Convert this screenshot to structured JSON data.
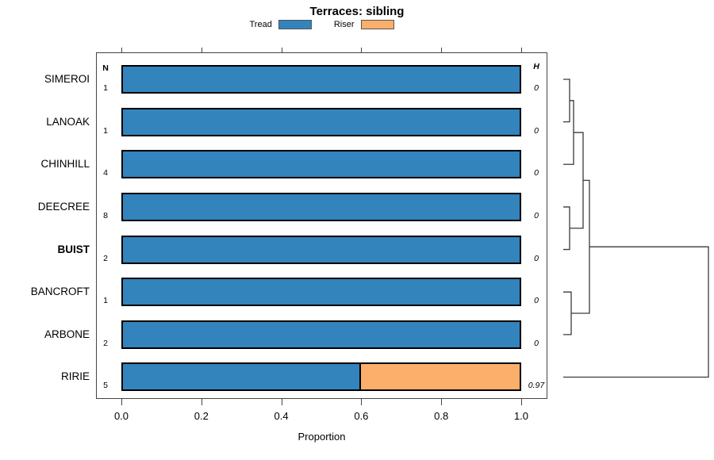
{
  "title": "Terraces: sibling",
  "legend": {
    "items": [
      {
        "label": "Tread",
        "color": "#3383bd",
        "icon": "tread-swatch"
      },
      {
        "label": "Riser",
        "color": "#fcae6b",
        "icon": "riser-swatch"
      }
    ]
  },
  "columns": {
    "left_header": "N",
    "right_header": "H"
  },
  "chart_data": {
    "type": "bar",
    "orientation": "horizontal-stacked",
    "title": "Terraces: sibling",
    "xlabel": "Proportion",
    "xlim": [
      0.0,
      1.0
    ],
    "x_ticks": [
      "0.0",
      "0.2",
      "0.4",
      "0.6",
      "0.8",
      "1.0"
    ],
    "grid": false,
    "legend_position": "top",
    "series_names": [
      "Tread",
      "Riser"
    ],
    "categories": [
      "SIMEROI",
      "LANOAK",
      "CHINHILL",
      "DEECREE",
      "BUIST",
      "BANCROFT",
      "ARBONE",
      "RIRIE"
    ],
    "rows": [
      {
        "label": "SIMEROI",
        "bold": false,
        "n": "1",
        "tread": 1.0,
        "riser": 0.0,
        "h": "0"
      },
      {
        "label": "LANOAK",
        "bold": false,
        "n": "1",
        "tread": 1.0,
        "riser": 0.0,
        "h": "0"
      },
      {
        "label": "CHINHILL",
        "bold": false,
        "n": "4",
        "tread": 1.0,
        "riser": 0.0,
        "h": "0"
      },
      {
        "label": "DEECREE",
        "bold": false,
        "n": "8",
        "tread": 1.0,
        "riser": 0.0,
        "h": "0"
      },
      {
        "label": "BUIST",
        "bold": true,
        "n": "2",
        "tread": 1.0,
        "riser": 0.0,
        "h": "0"
      },
      {
        "label": "BANCROFT",
        "bold": false,
        "n": "1",
        "tread": 1.0,
        "riser": 0.0,
        "h": "0"
      },
      {
        "label": "ARBONE",
        "bold": false,
        "n": "2",
        "tread": 1.0,
        "riser": 0.0,
        "h": "0"
      },
      {
        "label": "RIRIE",
        "bold": false,
        "n": "5",
        "tread": 0.6,
        "riser": 0.4,
        "h": "0.97"
      }
    ],
    "dendrogram": {
      "joins": [
        {
          "id": "j1",
          "a": "SIMEROI",
          "b": "LANOAK",
          "dx": 8
        },
        {
          "id": "j2",
          "a": "j1",
          "b": "CHINHILL",
          "dx": 13
        },
        {
          "id": "j3",
          "a": "DEECREE",
          "b": "BUIST",
          "dx": 8
        },
        {
          "id": "j4",
          "a": "j2",
          "b": "j3",
          "dx": 25
        },
        {
          "id": "j5",
          "a": "BANCROFT",
          "b": "ARBONE",
          "dx": 10
        },
        {
          "id": "j6",
          "a": "j4",
          "b": "j5",
          "dx": 33
        },
        {
          "id": "j7",
          "a": "j6",
          "b": "RIRIE",
          "dx": 183
        }
      ]
    }
  },
  "colors": {
    "tread": "#3383bd",
    "riser": "#fcae6b",
    "bar_border": "#000000",
    "frame": "#444444",
    "dendrogram": "#3a3a3a"
  }
}
